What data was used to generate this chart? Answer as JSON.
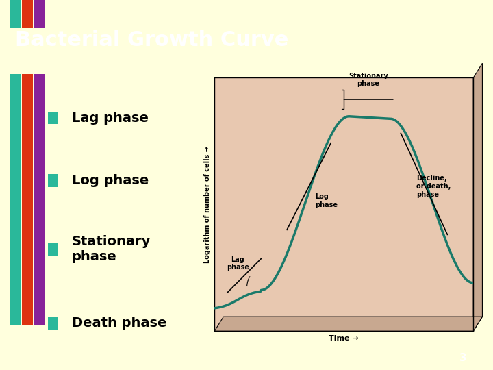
{
  "title": "Bacterial Growth Curve",
  "title_color": "#ffffff",
  "title_bg": "#000000",
  "slide_bg": "#ffffdd",
  "bullet_color": "#2ab89a",
  "bullet_items": [
    "Lag phase",
    "Log phase",
    "Stationary\nphase",
    "Death phase"
  ],
  "stripe_colors": [
    "#2ab89a",
    "#dd3311",
    "#882299"
  ],
  "page_number": "3",
  "graph_bg": "#e8c8b0",
  "graph_bg_3d": "#c8a890",
  "curve_color": "#1a7a6a",
  "ylabel": "Logarithm of number of cells →",
  "xlabel": "Time →",
  "graph_labels": {
    "stationary": "Stationary\nphase",
    "log": "Log\nphase",
    "lag": "Lag\nphase",
    "decline": "Decline,\nor death,\nphase"
  }
}
